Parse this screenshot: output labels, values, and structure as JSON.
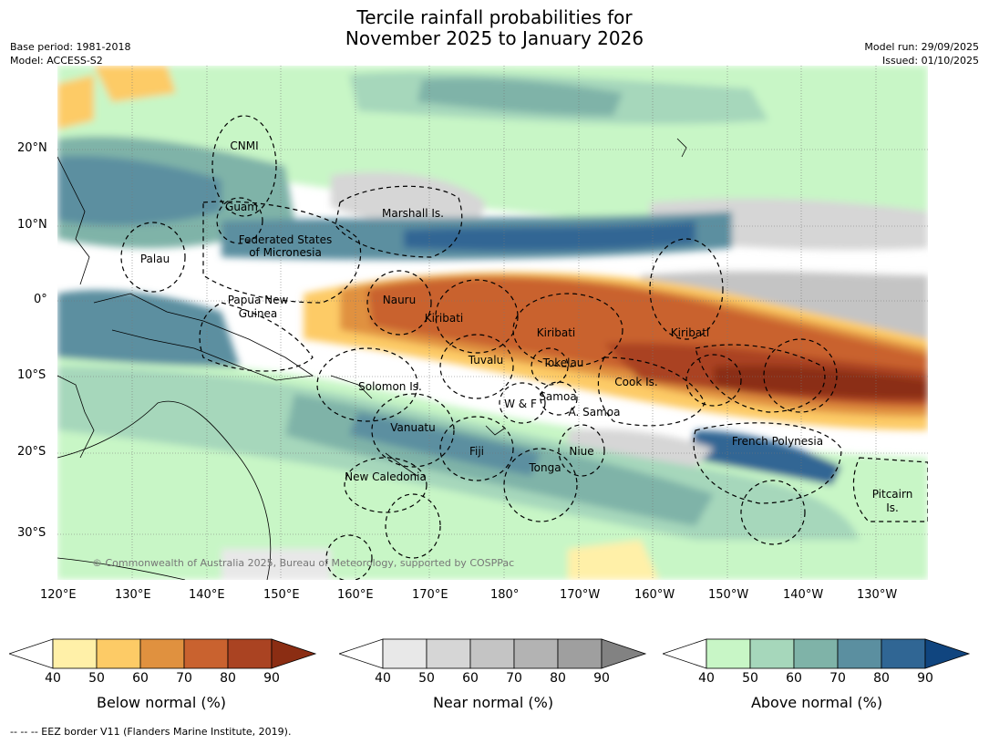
{
  "title_line1": "Tercile rainfall probabilities for",
  "title_line2": "November 2025 to January 2026",
  "base_period": "Base period: 1981-2018",
  "model": "Model: ACCESS-S2",
  "model_run": "Model run: 29/09/2025",
  "issued": "Issued: 01/10/2025",
  "copyright": "© Commonwealth of Australia 2025, Bureau of Meteorology, supported by COSPPac",
  "footer": "--  --  -- EEZ border V11 (Flanders Marine Institute, 2019).",
  "lat_labels": [
    "20°N",
    "10°N",
    "0°",
    "10°S",
    "20°S",
    "30°S"
  ],
  "lon_labels": [
    "120°E",
    "130°E",
    "140°E",
    "150°E",
    "160°E",
    "170°E",
    "180°",
    "170°W",
    "160°W",
    "150°W",
    "140°W",
    "130°W"
  ],
  "regions": [
    "CNMI",
    "Guam",
    "Marshall Is.",
    "Federated States",
    "of Micronesia",
    "Palau",
    "Papua New",
    "Guinea",
    "Nauru",
    "Kiribati",
    "Kiribati",
    "Kiribati",
    "Tuvalu",
    "Tokelau",
    "Solomon Is.",
    "Samoa",
    "W & F",
    "A. Samoa",
    "Cook Is.",
    "Vanuatu",
    "Fiji",
    "Niue",
    "French Polynesia",
    "Tonga",
    "New Caledonia",
    "Pitcairn",
    "Is."
  ],
  "colorbars": [
    {
      "title": "Below normal (%)",
      "ticks": [
        "40",
        "50",
        "60",
        "70",
        "80",
        "90"
      ],
      "colors": [
        "#fff0a8",
        "#fdcb66",
        "#e0913f",
        "#c9622f",
        "#aa4322",
        "#8b2d13"
      ]
    },
    {
      "title": "Near normal (%)",
      "ticks": [
        "40",
        "50",
        "60",
        "70",
        "80",
        "90"
      ],
      "colors": [
        "#e8e8e8",
        "#d6d6d6",
        "#c4c4c4",
        "#b3b3b3",
        "#9f9f9f",
        "#828282"
      ]
    },
    {
      "title": "Above normal (%)",
      "ticks": [
        "40",
        "50",
        "60",
        "70",
        "80",
        "90"
      ],
      "colors": [
        "#c8f6c6",
        "#a6d7bb",
        "#7fb3a8",
        "#5b8fa0",
        "#306694",
        "#10457f"
      ]
    }
  ],
  "colors": {
    "land_line": "#000000",
    "eez_line": "#000000",
    "grid": "#777777"
  }
}
